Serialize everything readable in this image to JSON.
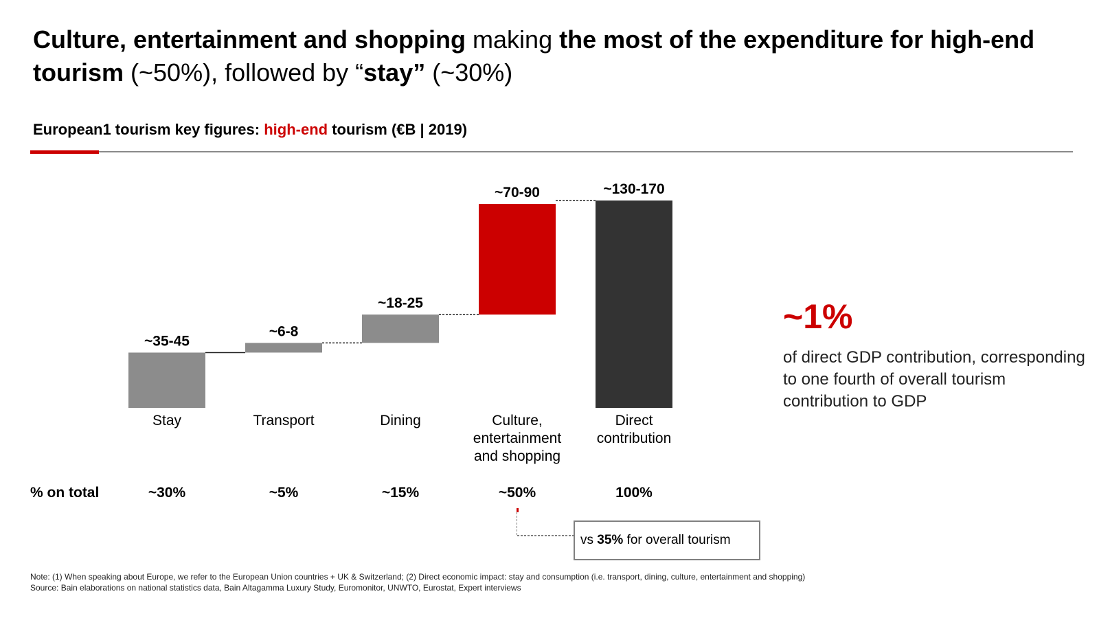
{
  "headline": {
    "part1": "Culture, entertainment and shopping",
    "part2": " making ",
    "part3": "the most of the expenditure for high-end tourism",
    "part4": " (~50%), followed by “",
    "part5": "stay”",
    "part6": " (~30%)"
  },
  "subtitle": {
    "part1": "European1 tourism key figures: ",
    "part2": "high-end",
    "part3": " tourism (€B | 2019)"
  },
  "chart_data": {
    "type": "bar",
    "subtype": "waterfall",
    "unit": "€B",
    "categories": [
      "Stay",
      "Transport",
      "Dining",
      "Culture,\nentertainment\nand shopping",
      "Direct\ncontribution"
    ],
    "value_labels": [
      "~35-45",
      "~6-8",
      "~18-25",
      "~70-90",
      "~130-170"
    ],
    "values": [
      40,
      7,
      20.5,
      80,
      150
    ],
    "bases": [
      0,
      40,
      47,
      67.5,
      0
    ],
    "colors": [
      "#8c8c8c",
      "#8c8c8c",
      "#8c8c8c",
      "#cc0000",
      "#333333"
    ],
    "ylim": [
      0,
      150
    ],
    "grid": false,
    "legend": "none"
  },
  "percent_row": {
    "title": "% on total",
    "values": [
      "~30%",
      "~5%",
      "~15%",
      "~50%",
      "100%"
    ]
  },
  "kpi": {
    "value": "~1%",
    "text": "of direct GDP contribution, corresponding to one fourth of overall tourism contribution to GDP"
  },
  "callout": {
    "prefix": "vs ",
    "highlight": "35%",
    "suffix": " for overall tourism"
  },
  "footnote": {
    "note": "Note: (1) When speaking about Europe, we refer to the European Union countries + UK & Switzerland; (2) Direct economic impact: stay and consumption (i.e. transport, dining, culture, entertainment and shopping)",
    "source": "Source: Bain elaborations on national statistics data, Bain Altagamma Luxury Study, Euromonitor, UNWTO, Eurostat, Expert interviews"
  },
  "colors": {
    "accent": "#cc0000",
    "neutral_bar": "#8c8c8c",
    "total_bar": "#333333"
  }
}
